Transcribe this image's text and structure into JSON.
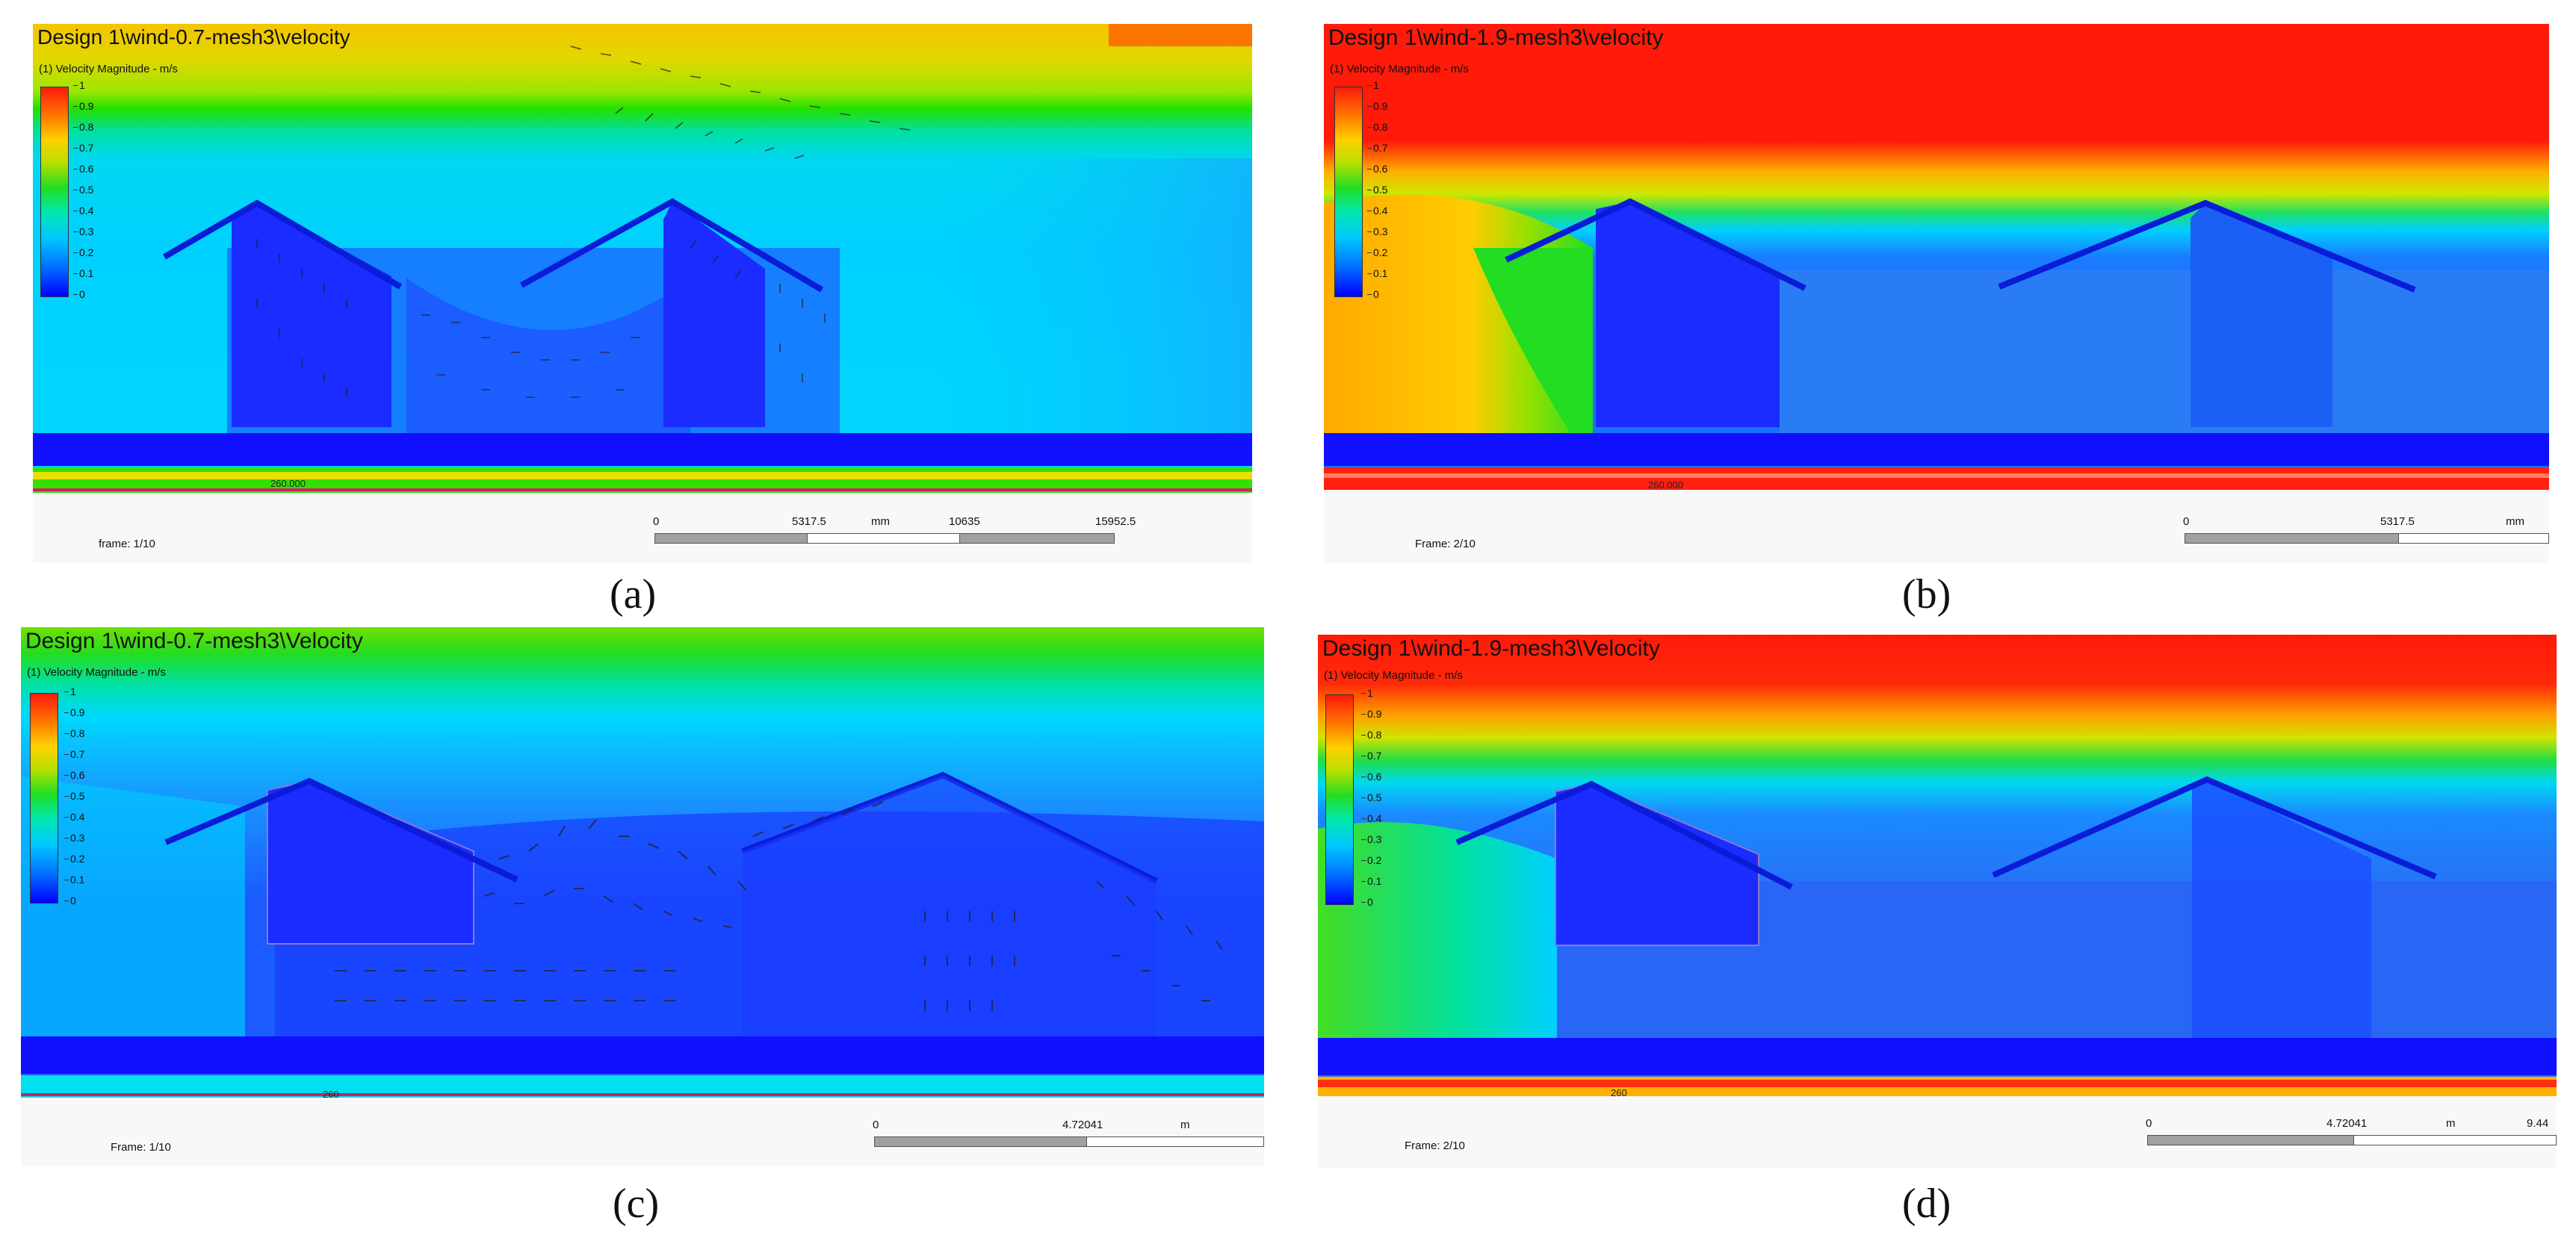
{
  "panels": [
    {
      "id": "a",
      "title": "Design 1\\wind-0.7-mesh3\\velocity",
      "legend_title": "(1) Velocity Magnitude - m/s",
      "frame": "frame: 1/10",
      "marker": "260.000",
      "scale": {
        "ticks": [
          "0",
          "5317.5",
          "mm",
          "10635",
          "15952.5"
        ]
      }
    },
    {
      "id": "b",
      "title": "Design 1\\wind-1.9-mesh3\\velocity",
      "legend_title": "(1) Velocity Magnitude - m/s",
      "frame": "Frame: 2/10",
      "marker": "260.000",
      "scale": {
        "ticks": [
          "0",
          "5317.5",
          "mm"
        ]
      }
    },
    {
      "id": "c",
      "title": "Design 1\\wind-0.7-mesh3\\Velocity",
      "legend_title": "(1) Velocity Magnitude - m/s",
      "frame": "Frame: 1/10",
      "marker": "260",
      "scale": {
        "ticks": [
          "0",
          "4.72041",
          "m"
        ]
      }
    },
    {
      "id": "d",
      "title": "Design 1\\wind-1.9-mesh3\\Velocity",
      "legend_title": "(1) Velocity Magnitude - m/s",
      "frame": "Frame: 2/10",
      "marker": "260",
      "scale": {
        "ticks": [
          "0",
          "4.72041",
          "m",
          "9.44"
        ]
      }
    }
  ],
  "colorbar_ticks": [
    "1",
    "0.9",
    "0.8",
    "0.7",
    "0.6",
    "0.5",
    "0.4",
    "0.3",
    "0.2",
    "0.1",
    "0"
  ],
  "captions": {
    "a": "(a)",
    "b": "(b)",
    "c": "(c)",
    "d": "(d)"
  },
  "colors": {
    "high": "#ff1a0a",
    "orange": "#ff9a00",
    "yellow": "#e8e000",
    "green": "#22dd22",
    "cyan": "#00d8ff",
    "blue": "#0a2cf0",
    "ground": "#1010ff"
  }
}
